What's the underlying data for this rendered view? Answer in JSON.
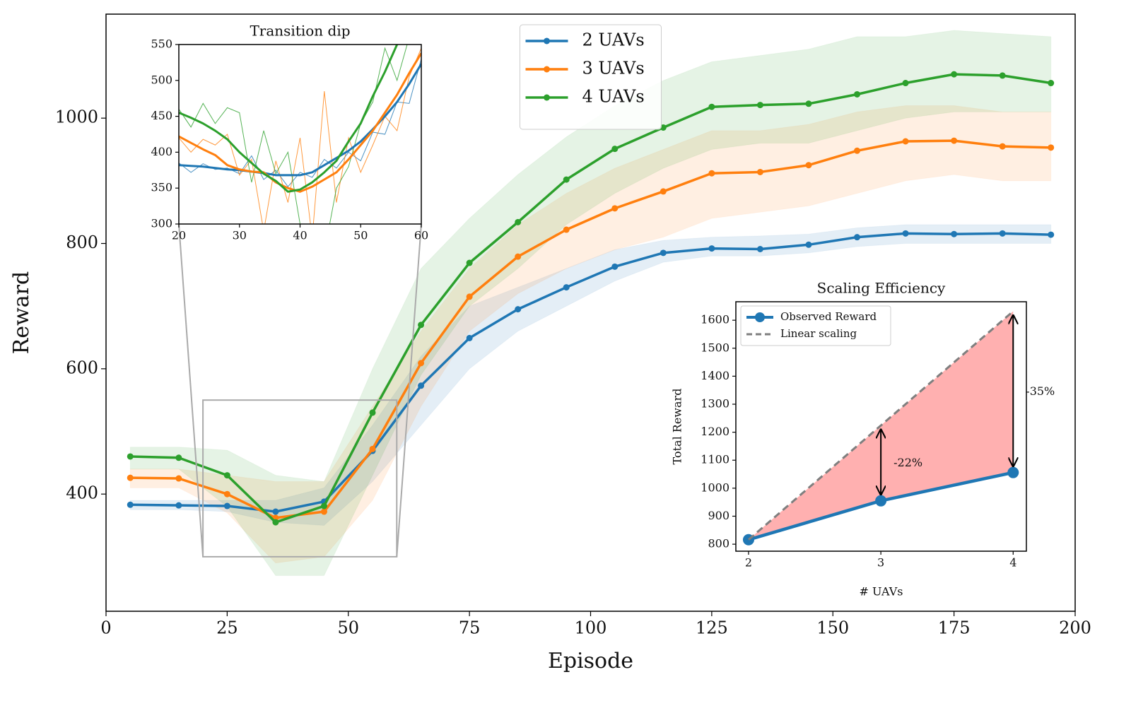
{
  "chart_data": [
    {
      "type": "line",
      "x_label": "Episode",
      "y_label": "Reward",
      "x": [
        5,
        15,
        25,
        35,
        45,
        55,
        65,
        75,
        85,
        95,
        105,
        115,
        125,
        135,
        145,
        155,
        165,
        175,
        185,
        195
      ],
      "xlim": [
        0,
        200
      ],
      "ylim": [
        213,
        1166
      ],
      "xticks": [
        0,
        25,
        50,
        75,
        100,
        125,
        150,
        175,
        200
      ],
      "yticks": [
        400,
        600,
        800,
        1000
      ],
      "legend": "upper center",
      "series": [
        {
          "name": "2 UAVs",
          "color": "#1f77b4",
          "values": [
            383,
            382,
            381,
            372,
            388,
            469,
            573,
            649,
            695,
            730,
            763,
            785,
            792,
            791,
            798,
            810,
            816,
            815,
            816,
            814
          ],
          "lower": [
            375,
            375,
            372,
            355,
            350,
            420,
            510,
            600,
            660,
            700,
            740,
            770,
            780,
            780,
            785,
            795,
            800,
            800,
            800,
            800
          ],
          "upper": [
            390,
            390,
            390,
            390,
            410,
            510,
            620,
            700,
            730,
            760,
            790,
            805,
            810,
            812,
            815,
            825,
            830,
            830,
            830,
            830
          ]
        },
        {
          "name": "3 UAVs",
          "color": "#ff7f0e",
          "values": [
            426,
            425,
            400,
            362,
            372,
            472,
            609,
            715,
            779,
            822,
            856,
            883,
            912,
            914,
            925,
            948,
            963,
            964,
            955,
            953
          ],
          "lower": [
            410,
            410,
            370,
            290,
            300,
            390,
            540,
            660,
            720,
            760,
            790,
            810,
            840,
            850,
            860,
            880,
            900,
            910,
            900,
            900
          ],
          "upper": [
            440,
            440,
            430,
            420,
            420,
            540,
            660,
            760,
            830,
            880,
            920,
            950,
            980,
            980,
            990,
            1010,
            1020,
            1020,
            1010,
            1010
          ]
        },
        {
          "name": "4 UAVs",
          "color": "#2ca02c",
          "values": [
            460,
            458,
            430,
            355,
            381,
            530,
            670,
            769,
            834,
            902,
            951,
            985,
            1018,
            1021,
            1023,
            1038,
            1056,
            1070,
            1068,
            1056
          ],
          "lower": [
            440,
            440,
            380,
            270,
            270,
            430,
            590,
            700,
            760,
            830,
            880,
            920,
            950,
            960,
            960,
            980,
            1000,
            1010,
            1010,
            1010
          ],
          "upper": [
            475,
            475,
            470,
            430,
            420,
            600,
            760,
            840,
            910,
            970,
            1020,
            1060,
            1090,
            1100,
            1110,
            1130,
            1130,
            1140,
            1135,
            1130
          ]
        }
      ]
    },
    {
      "type": "line",
      "title": "Transition dip",
      "x": [
        20,
        22,
        24,
        26,
        28,
        30,
        32,
        34,
        36,
        38,
        40,
        42,
        44,
        46,
        48,
        50,
        52,
        54,
        56,
        58,
        60
      ],
      "xlim": [
        20,
        60
      ],
      "ylim": [
        300,
        550
      ],
      "xticks": [
        20,
        30,
        40,
        50,
        60
      ],
      "yticks": [
        300,
        350,
        400,
        450,
        500,
        550
      ],
      "series": [
        {
          "color": "#1f77b4",
          "values": [
            382,
            381,
            380,
            378,
            376,
            375,
            373,
            371,
            368,
            368,
            368,
            372,
            382,
            392,
            402,
            415,
            432,
            450,
            470,
            495,
            523
          ],
          "raw": [
            385,
            372,
            384,
            376,
            378,
            370,
            395,
            362,
            375,
            352,
            372,
            365,
            390,
            378,
            400,
            388,
            428,
            425,
            470,
            468,
            530
          ]
        },
        {
          "color": "#ff7f0e",
          "values": [
            422,
            413,
            404,
            396,
            382,
            376,
            373,
            372,
            358,
            350,
            345,
            352,
            362,
            372,
            390,
            410,
            430,
            455,
            480,
            510,
            538
          ],
          "raw": [
            420,
            400,
            418,
            410,
            425,
            368,
            390,
            290,
            388,
            330,
            420,
            280,
            485,
            330,
            420,
            372,
            410,
            450,
            430,
            505,
            545
          ]
        },
        {
          "color": "#2ca02c",
          "values": [
            455,
            448,
            440,
            430,
            418,
            400,
            385,
            370,
            360,
            345,
            348,
            358,
            372,
            388,
            415,
            440,
            478,
            512,
            550,
            570,
            590
          ],
          "raw": [
            460,
            435,
            468,
            440,
            462,
            455,
            358,
            430,
            370,
            400,
            300,
            250,
            260,
            350,
            380,
            440,
            470,
            545,
            500,
            560,
            600
          ]
        }
      ]
    },
    {
      "type": "scaling",
      "title": "Scaling Efficiency",
      "x_label": "# UAVs",
      "y_label": "Total Reward",
      "x": [
        2,
        3,
        4
      ],
      "xlim": [
        1.904,
        4.1
      ],
      "ylim": [
        775,
        1666
      ],
      "xticks": [
        2,
        3,
        4
      ],
      "yticks": [
        800,
        900,
        1000,
        1100,
        1200,
        1300,
        1400,
        1500,
        1600
      ],
      "gap_color": "#ffb0b0",
      "series": [
        {
          "name": "Observed Reward",
          "color": "#1f77b4",
          "values": [
            816,
            955,
            1056
          ]
        },
        {
          "name": "Linear scaling",
          "color": "#7f7f7f",
          "values": [
            816,
            1224,
            1632
          ],
          "dashed": true
        }
      ],
      "annotations": [
        {
          "x": 3,
          "text": "-22%"
        },
        {
          "x": 4,
          "text": "-35%"
        }
      ]
    }
  ]
}
